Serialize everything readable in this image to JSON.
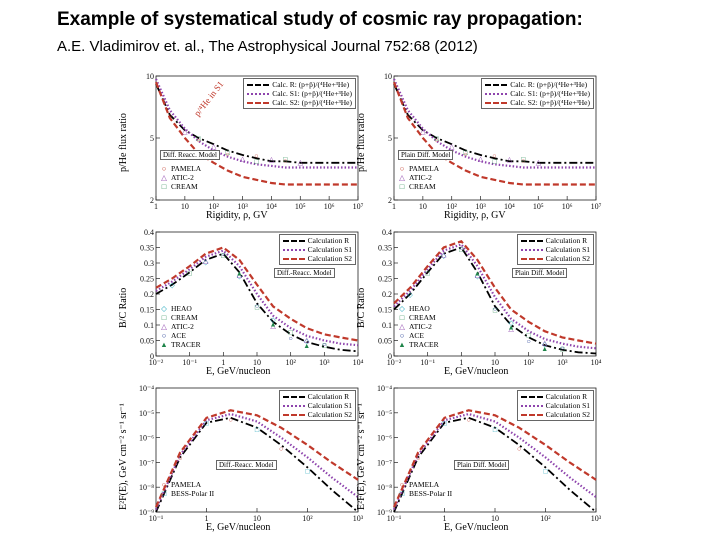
{
  "title": "Example of systematical study of cosmic ray propagation:",
  "citation": "A.E. Vladimirov et. al., The Astrophysical Journal 752:68 (2012)",
  "colors": {
    "calc_r": "#000000",
    "calc_s1": "#8e44ad",
    "calc_s2": "#c0392b",
    "pamela": "#c0392b",
    "atic": "#8e44ad",
    "cream": "#1e8449",
    "heao": "#17a2b8",
    "ace": "#1f3a93",
    "tracer": "#1e8449",
    "bess": "#17a2b8"
  },
  "panels": [
    {
      "ylabel": "p/He flux ratio",
      "xlabel": "Rigidity, ρ, GV",
      "model": "Diff. Reacc. Model",
      "rotated_label": "p/⁴He in S1",
      "yticks": [
        "10",
        "5",
        "2"
      ],
      "xticks": [
        "1",
        "10",
        "10²",
        "10³",
        "10⁴",
        "10⁵",
        "10⁶",
        "10⁷"
      ],
      "legend": [
        "Calc. R: (p+p̄)/(⁴He+³He)",
        "Calc. S1: (p+p̄)/(⁴He+³He)",
        "Calc. S2: (p+p̄)/(⁴He+³He)"
      ],
      "datasets": [
        "PAMELA",
        "ATIC-2",
        "CREAM"
      ],
      "chart_data": {
        "type": "line",
        "x": [
          1,
          3,
          10,
          30,
          100,
          300,
          1000,
          3000,
          10000,
          30000,
          100000,
          1000000,
          10000000
        ],
        "series": [
          {
            "name": "Calc. R",
            "values": [
              9.5,
              7.5,
              6.5,
              6.0,
              5.6,
              5.2,
              4.9,
              4.7,
              4.5,
              4.5,
              4.4,
              4.4,
              4.4
            ]
          },
          {
            "name": "Calc. S1",
            "values": [
              9.8,
              7.8,
              6.6,
              5.8,
              5.2,
              4.8,
              4.5,
              4.3,
              4.2,
              4.1,
              4.1,
              4.1,
              4.1
            ]
          },
          {
            "name": "Calc. S2",
            "values": [
              9.6,
              7.3,
              6.0,
              5.0,
              4.4,
              3.9,
              3.5,
              3.3,
              3.1,
              3.0,
              3.0,
              3.0,
              3.0
            ]
          }
        ],
        "ylim": [
          2,
          10
        ],
        "log_x": true
      }
    },
    {
      "ylabel": "p/He flux ratio",
      "xlabel": "Rigidity, ρ, GV",
      "model": "Plain Diff. Model",
      "rotated_label": "",
      "yticks": [
        "10",
        "5",
        "2"
      ],
      "xticks": [
        "1",
        "10",
        "10²",
        "10³",
        "10⁴",
        "10⁵",
        "10⁶",
        "10⁷"
      ],
      "legend": [
        "Calc. R: (p+p̄)/(⁴He+³He)",
        "Calc. S1: (p+p̄)/(⁴He+³He)",
        "Calc. S2: (p+p̄)/(⁴He+³He)"
      ],
      "datasets": [
        "PAMELA",
        "ATIC-2",
        "CREAM"
      ],
      "chart_data": {
        "type": "line",
        "x": [
          1,
          3,
          10,
          30,
          100,
          300,
          1000,
          3000,
          10000,
          30000,
          100000,
          1000000,
          10000000
        ],
        "series": [
          {
            "name": "Calc. R",
            "values": [
              9.5,
              7.5,
              6.5,
              6.0,
              5.6,
              5.2,
              4.9,
              4.7,
              4.5,
              4.5,
              4.4,
              4.4,
              4.4
            ]
          },
          {
            "name": "Calc. S1",
            "values": [
              9.8,
              7.8,
              6.6,
              5.8,
              5.2,
              4.8,
              4.5,
              4.3,
              4.2,
              4.1,
              4.1,
              4.1,
              4.1
            ]
          },
          {
            "name": "Calc. S2",
            "values": [
              9.6,
              7.3,
              6.0,
              5.0,
              4.4,
              3.9,
              3.5,
              3.3,
              3.1,
              3.0,
              3.0,
              3.0,
              3.0
            ]
          }
        ],
        "ylim": [
          2,
          10
        ],
        "log_x": true
      }
    },
    {
      "ylabel": "B/C Ratio",
      "xlabel": "E, GeV/nucleon",
      "model": "Diff.-Reacc. Model",
      "rotated_label": "",
      "yticks": [
        "0.4",
        "0.35",
        "0.3",
        "0.25",
        "0.2",
        "0.15",
        "0.1",
        "0.05",
        "0"
      ],
      "xticks": [
        "10⁻²",
        "10⁻¹",
        "1",
        "10",
        "10²",
        "10³",
        "10⁴"
      ],
      "legend": [
        "Calculation R",
        "Calculation S1",
        "Calculation S2"
      ],
      "datasets": [
        "HEAO",
        "CREAM",
        "ATIC-2",
        "ACE",
        "TRACER"
      ],
      "chart_data": {
        "type": "line",
        "x": [
          0.01,
          0.03,
          0.1,
          0.3,
          1,
          3,
          10,
          30,
          100,
          300,
          1000,
          3000,
          10000
        ],
        "series": [
          {
            "name": "Calculation R",
            "values": [
              0.2,
              0.23,
              0.27,
              0.31,
              0.33,
              0.27,
              0.17,
              0.11,
              0.07,
              0.045,
              0.03,
              0.02,
              0.015
            ]
          },
          {
            "name": "Calculation S1",
            "values": [
              0.21,
              0.24,
              0.28,
              0.32,
              0.34,
              0.29,
              0.2,
              0.13,
              0.09,
              0.065,
              0.05,
              0.04,
              0.035
            ]
          },
          {
            "name": "Calculation S2",
            "values": [
              0.22,
              0.25,
              0.29,
              0.33,
              0.35,
              0.31,
              0.23,
              0.16,
              0.12,
              0.09,
              0.07,
              0.06,
              0.05
            ]
          }
        ],
        "ylim": [
          0,
          0.4
        ],
        "log_x": true
      }
    },
    {
      "ylabel": "B/C Ratio",
      "xlabel": "E, GeV/nucleon",
      "model": "Plain Diff. Model",
      "rotated_label": "",
      "yticks": [
        "0.4",
        "0.35",
        "0.3",
        "0.25",
        "0.2",
        "0.15",
        "0.1",
        "0.05",
        "0"
      ],
      "xticks": [
        "10⁻²",
        "10⁻¹",
        "1",
        "10",
        "10²",
        "10³",
        "10⁴"
      ],
      "legend": [
        "Calculation R",
        "Calculation S1",
        "Calculation S2"
      ],
      "datasets": [
        "HEAO",
        "CREAM",
        "ATIC-2",
        "ACE",
        "TRACER"
      ],
      "chart_data": {
        "type": "line",
        "x": [
          0.01,
          0.03,
          0.1,
          0.3,
          1,
          3,
          10,
          30,
          100,
          300,
          1000,
          3000,
          10000
        ],
        "series": [
          {
            "name": "Calculation R",
            "values": [
              0.15,
              0.2,
              0.27,
              0.33,
              0.35,
              0.27,
              0.16,
              0.1,
              0.06,
              0.035,
              0.02,
              0.012,
              0.008
            ]
          },
          {
            "name": "Calculation S1",
            "values": [
              0.16,
              0.21,
              0.28,
              0.34,
              0.36,
              0.29,
              0.19,
              0.12,
              0.08,
              0.055,
              0.04,
              0.03,
              0.025
            ]
          },
          {
            "name": "Calculation S2",
            "values": [
              0.17,
              0.22,
              0.29,
              0.35,
              0.37,
              0.31,
              0.22,
              0.15,
              0.11,
              0.08,
              0.06,
              0.05,
              0.04
            ]
          }
        ],
        "ylim": [
          0,
          0.4
        ],
        "log_x": true
      }
    },
    {
      "ylabel": "E²F(E), GeV cm⁻² s⁻¹ sr⁻¹",
      "xlabel": "E, GeV/nucleon",
      "model": "Diff.-Reacc. Model",
      "rotated_label": "",
      "yticks": [
        "10⁻⁴",
        "10⁻⁵",
        "10⁻⁶",
        "10⁻⁷",
        "10⁻⁸",
        "10⁻⁹"
      ],
      "xticks": [
        "10⁻¹",
        "1",
        "10",
        "10²",
        "10³"
      ],
      "legend": [
        "Calculation R",
        "Calculation S1",
        "Calculation S2"
      ],
      "datasets": [
        "PAMELA",
        "BESS-Polar II"
      ],
      "chart_data": {
        "type": "line",
        "x": [
          0.1,
          0.3,
          1,
          3,
          10,
          30,
          100,
          300,
          1000
        ],
        "series": [
          {
            "name": "Calculation R",
            "values": [
              -9.0,
              -6.8,
              -5.4,
              -5.2,
              -5.6,
              -6.3,
              -7.2,
              -8.1,
              -9.0
            ]
          },
          {
            "name": "Calculation S1",
            "values": [
              -8.9,
              -6.7,
              -5.3,
              -5.05,
              -5.35,
              -6.0,
              -6.8,
              -7.6,
              -8.4
            ]
          },
          {
            "name": "Calculation S2",
            "values": [
              -8.8,
              -6.6,
              -5.2,
              -4.9,
              -5.1,
              -5.6,
              -6.3,
              -7.0,
              -7.7
            ]
          }
        ],
        "ylim": [
          -9,
          -4
        ],
        "ylabel_note": "log10 values",
        "log_x": true
      }
    },
    {
      "ylabel": "E²F(E), GeV cm⁻² s⁻¹ sr⁻¹",
      "xlabel": "E, GeV/nucleon",
      "model": "Plain Diff. Model",
      "rotated_label": "",
      "yticks": [
        "10⁻⁴",
        "10⁻⁵",
        "10⁻⁶",
        "10⁻⁷",
        "10⁻⁸",
        "10⁻⁹"
      ],
      "xticks": [
        "10⁻¹",
        "1",
        "10",
        "10²",
        "10³"
      ],
      "legend": [
        "Calculation R",
        "Calculation S1",
        "Calculation S2"
      ],
      "datasets": [
        "PAMELA",
        "BESS-Polar II"
      ],
      "chart_data": {
        "type": "line",
        "x": [
          0.1,
          0.3,
          1,
          3,
          10,
          30,
          100,
          300,
          1000
        ],
        "series": [
          {
            "name": "Calculation R",
            "values": [
              -9.0,
              -6.8,
              -5.4,
              -5.2,
              -5.6,
              -6.3,
              -7.2,
              -8.1,
              -9.0
            ]
          },
          {
            "name": "Calculation S1",
            "values": [
              -8.9,
              -6.7,
              -5.3,
              -5.05,
              -5.35,
              -6.0,
              -6.8,
              -7.6,
              -8.4
            ]
          },
          {
            "name": "Calculation S2",
            "values": [
              -8.8,
              -6.6,
              -5.2,
              -4.9,
              -5.1,
              -5.6,
              -6.3,
              -7.0,
              -7.7
            ]
          }
        ],
        "ylim": [
          -9,
          -4
        ],
        "log_x": true
      }
    }
  ]
}
